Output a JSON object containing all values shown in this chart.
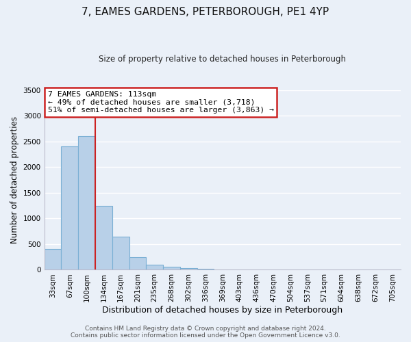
{
  "title": "7, EAMES GARDENS, PETERBOROUGH, PE1 4YP",
  "subtitle": "Size of property relative to detached houses in Peterborough",
  "xlabel": "Distribution of detached houses by size in Peterborough",
  "ylabel": "Number of detached properties",
  "bar_color": "#b8d0e8",
  "bar_edge_color": "#7aafd4",
  "background_color": "#eaf0f8",
  "grid_color": "#ffffff",
  "categories": [
    "33sqm",
    "67sqm",
    "100sqm",
    "134sqm",
    "167sqm",
    "201sqm",
    "235sqm",
    "268sqm",
    "302sqm",
    "336sqm",
    "369sqm",
    "403sqm",
    "436sqm",
    "470sqm",
    "504sqm",
    "537sqm",
    "571sqm",
    "604sqm",
    "638sqm",
    "672sqm",
    "705sqm"
  ],
  "values": [
    400,
    2400,
    2600,
    1250,
    640,
    250,
    105,
    55,
    35,
    20,
    10,
    5,
    0,
    0,
    0,
    0,
    0,
    0,
    0,
    0,
    0
  ],
  "vline_color": "#cc2222",
  "annotation_text": "7 EAMES GARDENS: 113sqm\n← 49% of detached houses are smaller (3,718)\n51% of semi-detached houses are larger (3,863) →",
  "annotation_box_color": "#ffffff",
  "annotation_box_edge": "#cc2222",
  "ylim": [
    0,
    3500
  ],
  "footer": "Contains HM Land Registry data © Crown copyright and database right 2024.\nContains public sector information licensed under the Open Government Licence v3.0.",
  "figsize": [
    6.0,
    5.0
  ],
  "dpi": 100
}
